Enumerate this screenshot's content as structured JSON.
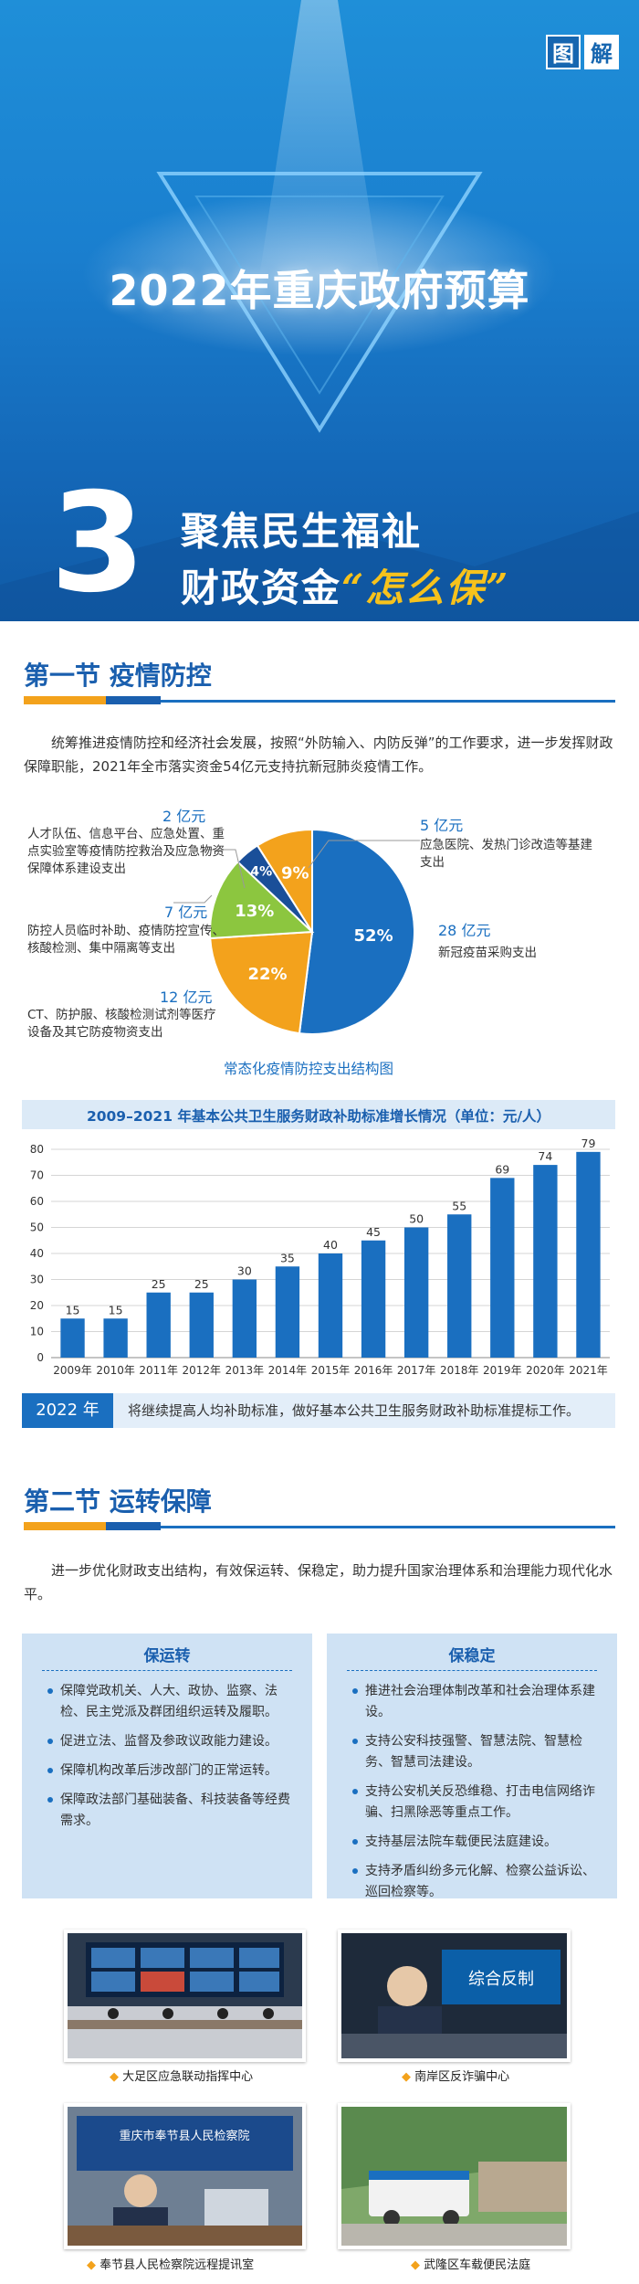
{
  "header": {
    "tag": [
      "图",
      "解"
    ],
    "title": "2022年重庆政府预算",
    "number": "3",
    "slogan_line1": "聚焦民生福祉",
    "slogan_line2_prefix": "财政资金",
    "slogan_line2_highlight": "“怎么保”"
  },
  "section1": {
    "heading": "第一节  疫情防控",
    "intro": "统筹推进疫情防控和经济社会发展，按照“外防输入、内防反弹”的工作要求，进一步发挥财政保障职能，2021年全市落实资金54亿元支持抗新冠肺炎疫情工作。",
    "pie": {
      "caption": "常态化疫情防控支出结构图",
      "slices": [
        {
          "amount": "28 亿元",
          "label": "新冠疫苗采购支出",
          "percent": "52%",
          "value": 52,
          "color": "#1a6fc0"
        },
        {
          "amount": "12 亿元",
          "label": "CT、防护服、核酸检测试剂等医疗设备及其它防疫物资支出",
          "percent": "22%",
          "value": 22,
          "color": "#f3a21c"
        },
        {
          "amount": "7 亿元",
          "label": "防控人员临时补助、疫情防控宣传、核酸检测、集中隔离等支出",
          "percent": "13%",
          "value": 13,
          "color": "#8cc63f"
        },
        {
          "amount": "2 亿元",
          "label": "人才队伍、信息平台、应急处置、重点实验室等疫情防控救治及应急物资保障体系建设支出",
          "percent": "4%",
          "value": 4,
          "color": "#1a4f99"
        },
        {
          "amount": "5 亿元",
          "label": "应急医院、发热门诊改造等基建支出",
          "percent": "9%",
          "value": 9,
          "color": "#f3a21c"
        }
      ]
    },
    "note_year": "2022 年",
    "note_text": "将继续提高人均补助标准，做好基本公共卫生服务财政补助标准提标工作。"
  },
  "chart_data": {
    "type": "bar",
    "title": "2009–2021 年基本公共卫生服务财政补助标准增长情况（单位：元/人）",
    "categories": [
      "2009年",
      "2010年",
      "2011年",
      "2012年",
      "2013年",
      "2014年",
      "2015年",
      "2016年",
      "2017年",
      "2018年",
      "2019年",
      "2020年",
      "2021年"
    ],
    "values": [
      15,
      15,
      25,
      25,
      30,
      35,
      40,
      45,
      50,
      55,
      69,
      74,
      79
    ],
    "ylim": [
      0,
      80
    ],
    "yticks": [
      0,
      10,
      20,
      30,
      40,
      50,
      60,
      70,
      80
    ],
    "grid": true,
    "bar_color": "#1a6fc0"
  },
  "section2": {
    "heading": "第二节  运转保障",
    "intro": "进一步优化财政支出结构，有效保运转、保稳定，助力提升国家治理体系和治理能力现代化水平。",
    "box_left": {
      "title": "保运转",
      "items": [
        "保障党政机关、人大、政协、监察、法检、民主党派及群团组织运转及履职。",
        "促进立法、监督及参政议政能力建设。",
        "保障机构改革后涉改部门的正常运转。",
        "保障政法部门基础装备、科技装备等经费需求。"
      ]
    },
    "box_right": {
      "title": "保稳定",
      "items": [
        "推进社会治理体制改革和社会治理体系建设。",
        "支持公安科技强警、智慧法院、智慧检务、智慧司法建设。",
        "支持公安机关反恐维稳、打击电信网络诈骗、扫黑除恶等重点工作。",
        "支持基层法院车载便民法庭建设。",
        "支持矛盾纠纷多元化解、检察公益诉讼、巡回检察等。"
      ]
    },
    "photos": [
      {
        "caption": "大足区应急联动指挥中心",
        "icon": "command-center-photo"
      },
      {
        "caption": "南岸区反诈骗中心",
        "icon": "anti-fraud-center-photo",
        "sign": "综合反制"
      },
      {
        "caption": "奉节县人民检察院远程提讯室",
        "icon": "procuratorate-photo",
        "sign": "重庆市奉节县人民检察院"
      },
      {
        "caption": "武隆区车载便民法庭",
        "icon": "mobile-court-photo"
      }
    ]
  }
}
